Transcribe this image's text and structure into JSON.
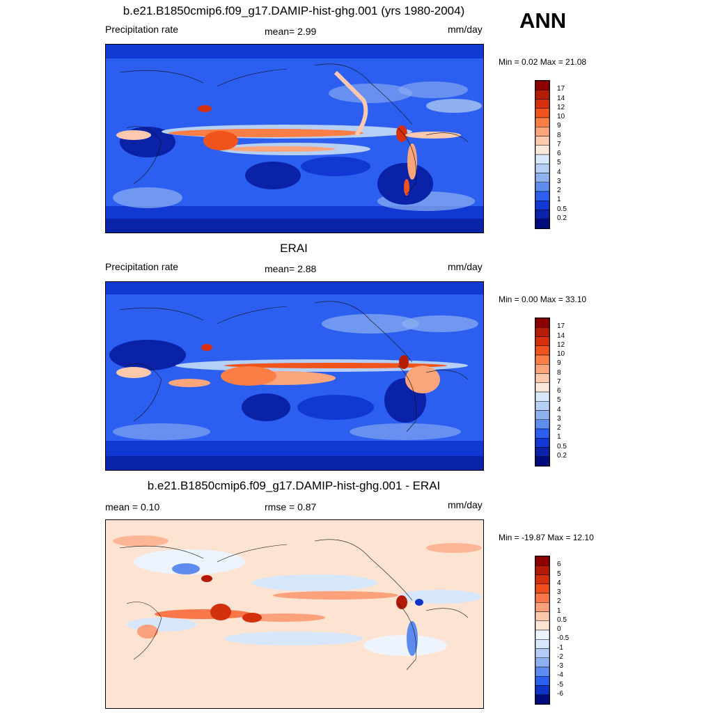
{
  "season": "ANN",
  "panels": [
    {
      "title": "b.e21.B1850cmip6.f09_g17.DAMIP-hist-ghg.001 (yrs 1980-2004)",
      "left_label": "Precipitation rate",
      "center_label": "mean=   2.99",
      "units": "mm/day",
      "minmax": "Min =   0.02 Max =  21.08",
      "colorbar_labels": [
        "17",
        "14",
        "12",
        "10",
        "9",
        "8",
        "7",
        "6",
        "5",
        "4",
        "3",
        "2",
        "1",
        "0.5",
        "0.2"
      ],
      "colorbar_colors": [
        "#8b0000",
        "#b51c05",
        "#d7300e",
        "#f0531c",
        "#fa7e46",
        "#fba57c",
        "#fcc9ae",
        "#fbe8da",
        "#d8e8fb",
        "#b6cff5",
        "#8fb1f0",
        "#5e8cef",
        "#2c5ff0",
        "#1238d4",
        "#0a22a8",
        "#000c7d"
      ],
      "chart_data": {
        "type": "heatmap",
        "title": "b.e21.B1850cmip6.f09_g17.DAMIP-hist-ghg.001 (yrs 1980-2004)",
        "variable": "Precipitation rate",
        "units": "mm/day",
        "mean": 2.99,
        "min": 0.02,
        "max": 21.08,
        "levels": [
          0.2,
          0.5,
          1,
          2,
          3,
          4,
          5,
          6,
          7,
          8,
          9,
          10,
          12,
          14,
          17
        ]
      }
    },
    {
      "title": "ERAI",
      "left_label": "Precipitation rate",
      "center_label": "mean=   2.88",
      "units": "mm/day",
      "minmax": "Min =   0.00 Max =  33.10",
      "colorbar_labels": [
        "17",
        "14",
        "12",
        "10",
        "9",
        "8",
        "7",
        "6",
        "5",
        "4",
        "3",
        "2",
        "1",
        "0.5",
        "0.2"
      ],
      "colorbar_colors": [
        "#8b0000",
        "#b51c05",
        "#d7300e",
        "#f0531c",
        "#fa7e46",
        "#fba57c",
        "#fcc9ae",
        "#fbe8da",
        "#d8e8fb",
        "#b6cff5",
        "#8fb1f0",
        "#5e8cef",
        "#2c5ff0",
        "#1238d4",
        "#0a22a8",
        "#000c7d"
      ],
      "chart_data": {
        "type": "heatmap",
        "title": "ERAI",
        "variable": "Precipitation rate",
        "units": "mm/day",
        "mean": 2.88,
        "min": 0.0,
        "max": 33.1,
        "levels": [
          0.2,
          0.5,
          1,
          2,
          3,
          4,
          5,
          6,
          7,
          8,
          9,
          10,
          12,
          14,
          17
        ]
      }
    },
    {
      "title": "b.e21.B1850cmip6.f09_g17.DAMIP-hist-ghg.001 - ERAI",
      "left_label": "mean =   0.10",
      "center_label": "rmse =   0.87",
      "units": "mm/day",
      "minmax": "Min = -19.87 Max =  12.10",
      "colorbar_labels": [
        "6",
        "5",
        "4",
        "3",
        "2",
        "1",
        "0.5",
        "0",
        "-0.5",
        "-1",
        "-2",
        "-3",
        "-4",
        "-5",
        "-6"
      ],
      "colorbar_colors": [
        "#8b0000",
        "#b21a04",
        "#d3300d",
        "#ef4f1a",
        "#f9774a",
        "#fba17b",
        "#fcc8ab",
        "#fde4d2",
        "#eef4fe",
        "#d6e6fb",
        "#b5cdf6",
        "#8fb0f0",
        "#5d8bef",
        "#2b5ff0",
        "#1134c8",
        "#000c7d"
      ],
      "chart_data": {
        "type": "heatmap",
        "title": "b.e21.B1850cmip6.f09_g17.DAMIP-hist-ghg.001 - ERAI",
        "units": "mm/day",
        "mean": 0.1,
        "rmse": 0.87,
        "min": -19.87,
        "max": 12.1,
        "levels": [
          -6,
          -5,
          -4,
          -3,
          -2,
          -1,
          -0.5,
          0,
          0.5,
          1,
          2,
          3,
          4,
          5,
          6
        ]
      }
    }
  ]
}
